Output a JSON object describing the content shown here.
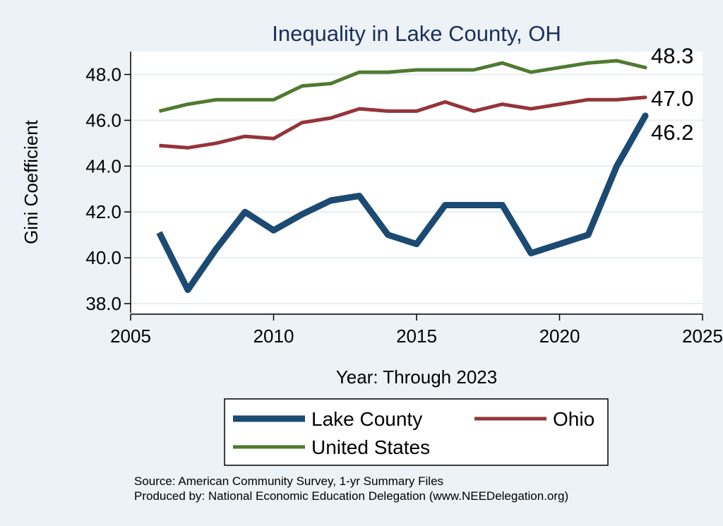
{
  "chart_data": {
    "type": "line",
    "title": "Inequality in Lake County, OH",
    "xlabel": "Year: Through 2023",
    "ylabel": "Gini Coefficient",
    "xlim": [
      2005,
      2025
    ],
    "ylim": [
      37.6,
      49.0
    ],
    "xticks": [
      2005,
      2010,
      2015,
      2020,
      2025
    ],
    "yticks": [
      38.0,
      40.0,
      42.0,
      44.0,
      46.0,
      48.0
    ],
    "ytick_labels": [
      "38.0",
      "40.0",
      "42.0",
      "44.0",
      "46.0",
      "48.0"
    ],
    "grid": true,
    "series": [
      {
        "name": "Lake County",
        "color": "#1b4a72",
        "x": [
          2006,
          2007,
          2008,
          2009,
          2010,
          2011,
          2012,
          2013,
          2014,
          2015,
          2016,
          2017,
          2018,
          2019,
          2020,
          2021,
          2022,
          2023
        ],
        "values": [
          41.1,
          38.6,
          40.4,
          42.0,
          41.2,
          41.9,
          42.5,
          42.7,
          41.0,
          40.6,
          42.3,
          42.3,
          42.3,
          40.2,
          40.6,
          41.0,
          44.0,
          46.2
        ],
        "end_label": "46.2"
      },
      {
        "name": "Ohio",
        "color": "#94343a",
        "x": [
          2006,
          2007,
          2008,
          2009,
          2010,
          2011,
          2012,
          2013,
          2014,
          2015,
          2016,
          2017,
          2018,
          2019,
          2020,
          2021,
          2022,
          2023
        ],
        "values": [
          44.9,
          44.8,
          45.0,
          45.3,
          45.2,
          45.9,
          46.1,
          46.5,
          46.4,
          46.4,
          46.8,
          46.4,
          46.7,
          46.5,
          46.7,
          46.9,
          46.9,
          47.0
        ],
        "end_label": "47.0"
      },
      {
        "name": "United States",
        "color": "#4f7a30",
        "x": [
          2006,
          2007,
          2008,
          2009,
          2010,
          2011,
          2012,
          2013,
          2014,
          2015,
          2016,
          2017,
          2018,
          2019,
          2020,
          2021,
          2022,
          2023
        ],
        "values": [
          46.4,
          46.7,
          46.9,
          46.9,
          46.9,
          47.5,
          47.6,
          48.1,
          48.1,
          48.2,
          48.2,
          48.2,
          48.5,
          48.1,
          48.3,
          48.5,
          48.6,
          48.3
        ],
        "end_label": "48.3"
      }
    ],
    "legend": {
      "placement": "bottom-center",
      "entries": [
        "Lake County",
        "Ohio",
        "United States"
      ]
    },
    "notes": [
      "Source: American Community Survey, 1-yr Summary Files",
      "Produced by: National Economic Education Delegation (www.NEEDelegation.org)"
    ]
  }
}
